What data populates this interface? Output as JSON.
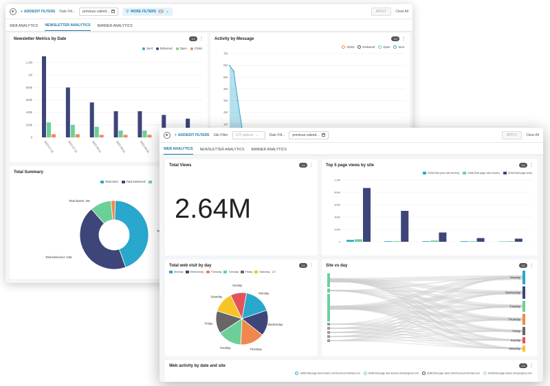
{
  "topbar": {
    "add_filters": "ADD/EDIT FILTERS",
    "date_filter_label": "Date Filt...",
    "date_filter_value": "previous calend...",
    "site_filter_label": "Site Filter",
    "site_filter_value": "172 options",
    "more_filters": "MORE FILTERS",
    "more_filters_count": "0",
    "apply": "APPLY",
    "clear_all": "Clear All"
  },
  "tabs": [
    {
      "label": "WEB ANALYTICS"
    },
    {
      "label": "NEWSLETTER ANALYTICS"
    },
    {
      "label": "BANNER ANALYTICS"
    }
  ],
  "colors": {
    "sent": "#2aa7cc",
    "delivered": "#3d4579",
    "open": "#6ccf98",
    "clicks": "#f0884d",
    "teal": "#2aa7cc",
    "navy": "#3d4579"
  },
  "back": {
    "newsletter_metrics": {
      "title": "Newsletter Metrics by Date",
      "pill": "1/1",
      "legend": [
        "Sent",
        "Delivered",
        "Open",
        "Clicks"
      ]
    },
    "activity_by_message": {
      "title": "Activity by Message",
      "pill": "1/1",
      "legend": [
        "Clicks",
        "Delivered",
        "Open",
        "Sent"
      ]
    },
    "total_summary": {
      "title": "Total Summary",
      "legend": [
        "Total Sent",
        "Total Delivered"
      ],
      "label_opens": "Total Opens: 2M",
      "label_delivered": "Total Delivered: 14M",
      "label_total": "Total"
    }
  },
  "front": {
    "total_views": {
      "title": "Total Views",
      "pill": "1/1",
      "value": "2.64M"
    },
    "top5": {
      "title": "Top 5 page views by site",
      "pill": "1/1",
      "legend": [
        "SUM(Total (sum site known))",
        "SUM(Total page view known)",
        "SUM(Total page view)"
      ]
    },
    "web_visit": {
      "title": "Total web visit by day",
      "pill": "1/1",
      "legend": [
        "Monday",
        "Wednesday",
        "Thursday",
        "Tuesday",
        "Friday",
        "Saturday"
      ],
      "legend_page": "1/2"
    },
    "site_vs_day": {
      "title": "Site vs day",
      "pill": "1/1",
      "days": [
        "Monday",
        "Wednesday",
        "Tuesday",
        "Thursday",
        "Friday",
        "Sunday",
        "Saturday"
      ]
    },
    "web_activity": {
      "title": "Web activity by date and site",
      "pill": "1/1",
      "legend": [
        "SUM(Total page view known), fermforums.pl.barchart.com",
        "SUM(Total page view known), fermprogress.com",
        "SUM(Total page views, fermforums.pl.barchart.com",
        "SUM(Total page views), fermprogress.com"
      ]
    }
  },
  "chart_data": [
    {
      "type": "bar",
      "title": "Newsletter Metrics by Date",
      "categories": [
        "2023-07-29",
        "2023-07-31",
        "2023-08-01",
        "2023-08-02",
        "2023-08-03",
        "2023-08-04",
        "2023-08-07"
      ],
      "series": [
        {
          "name": "Sent",
          "values": [
            0,
            0,
            0,
            0,
            0,
            0,
            0
          ]
        },
        {
          "name": "Delivered",
          "values": [
            1300000,
            800000,
            560000,
            420000,
            420000,
            360000,
            300000
          ]
        },
        {
          "name": "Open",
          "values": [
            240000,
            200000,
            170000,
            110000,
            110000,
            90000,
            130000
          ]
        },
        {
          "name": "Clicks",
          "values": [
            50000,
            50000,
            40000,
            40000,
            40000,
            30000,
            30000
          ]
        }
      ],
      "yticks": [
        "0",
        "200k",
        "400k",
        "600k",
        "800k",
        "1M",
        "1.2M"
      ],
      "ylim": [
        0,
        1300000
      ]
    },
    {
      "type": "line",
      "title": "Activity by Message",
      "series": [
        {
          "name": "Sent",
          "values": [
            6000000,
            5500000,
            3000000,
            700000,
            200000,
            100000,
            50000
          ]
        }
      ],
      "yticks": [
        "0",
        "1M",
        "2M",
        "3M",
        "4M",
        "5M",
        "6M",
        "7M"
      ],
      "ylim": [
        0,
        7000000
      ]
    },
    {
      "type": "pie",
      "title": "Total Summary",
      "slices": [
        {
          "label": "Total Sent",
          "value": 44
        },
        {
          "label": "Total Delivered",
          "value": 44
        },
        {
          "label": "Total Opens",
          "value": 10
        },
        {
          "label": "Total Clicks",
          "value": 2
        }
      ]
    },
    {
      "type": "bar",
      "title": "Top 5 page views by site",
      "categories": [
        "site1",
        "site2",
        "site3",
        "site4",
        "site5"
      ],
      "series": [
        {
          "name": "SUM(Total (sum site known))",
          "values": [
            30000,
            10000,
            10000,
            10000,
            5000
          ]
        },
        {
          "name": "SUM(Total page view known)",
          "values": [
            40000,
            10000,
            20000,
            10000,
            10000
          ]
        },
        {
          "name": "SUM(Total page view)",
          "values": [
            870000,
            500000,
            150000,
            60000,
            50000
          ]
        }
      ],
      "yticks": [
        "0",
        "200k",
        "400k",
        "600k",
        "800k",
        "1.0M"
      ],
      "ylim": [
        0,
        1000000
      ]
    },
    {
      "type": "pie",
      "title": "Total web visit by day",
      "slices": [
        {
          "label": "Monday",
          "value": 17
        },
        {
          "label": "Wednesday",
          "value": 16
        },
        {
          "label": "Thursday",
          "value": 15
        },
        {
          "label": "Tuesday",
          "value": 15
        },
        {
          "label": "Friday",
          "value": 14
        },
        {
          "label": "Saturday",
          "value": 13
        },
        {
          "label": "Sunday",
          "value": 10
        }
      ]
    }
  ]
}
